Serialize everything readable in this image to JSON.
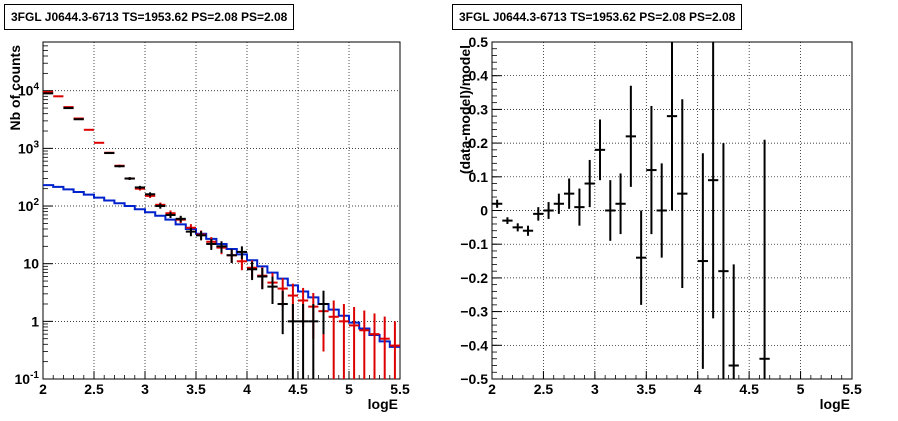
{
  "panels": [
    {
      "title": "3FGL J0644.3-6713 TS=1953.62 PS=2.08 PS=2.08"
    },
    {
      "title": "3FGL J0644.3-6713 TS=1953.62 PS=2.08 PS=2.08"
    }
  ],
  "colors": {
    "data": "#000000",
    "model_total": "#dd0000",
    "model_source": "#0022cc",
    "grid": "#000000"
  },
  "chart_data": [
    {
      "type": "line",
      "title": "3FGL J0644.3-6713 TS=1953.62 PS=2.08 PS=2.08",
      "xlabel": "logE",
      "ylabel": "Nb of counts",
      "xlim": [
        2,
        5.5
      ],
      "ylim": [
        0.1,
        70000
      ],
      "yscale": "log",
      "grid": true,
      "x_ticks": [
        "2",
        "2.5",
        "3",
        "3.5",
        "4",
        "4.5",
        "5",
        "5.5"
      ],
      "y_ticks": [
        "10^-1",
        "1",
        "10",
        "10^2",
        "10^3",
        "10^4"
      ],
      "x": [
        2.05,
        2.15,
        2.25,
        2.35,
        2.45,
        2.55,
        2.65,
        2.75,
        2.85,
        2.95,
        3.05,
        3.15,
        3.25,
        3.35,
        3.45,
        3.55,
        3.65,
        3.75,
        3.85,
        3.95,
        4.05,
        4.15,
        4.25,
        4.35,
        4.45,
        4.55,
        4.65,
        4.75,
        4.85,
        4.95,
        5.05,
        5.15,
        5.25,
        5.35,
        5.45
      ],
      "series": [
        {
          "kind": "data",
          "color": "#000000",
          "values": [
            9000,
            null,
            5000,
            3200,
            null,
            null,
            830,
            490,
            300,
            210,
            160,
            100,
            70,
            60,
            36,
            31,
            22,
            20,
            14,
            16,
            8,
            6,
            4,
            2,
            1,
            1,
            1,
            2,
            null,
            null,
            null,
            null,
            null,
            null,
            null
          ],
          "errors": [
            95,
            null,
            70,
            57,
            null,
            null,
            29,
            22,
            17,
            14,
            13,
            10,
            8,
            7.7,
            6,
            5.6,
            4.7,
            4.5,
            3.7,
            4,
            2.8,
            2.4,
            2,
            1.4,
            1,
            1,
            1,
            1.4,
            null,
            null,
            null,
            null,
            null,
            null,
            null
          ]
        },
        {
          "kind": "model_total",
          "color": "#dd0000",
          "values": [
            9500,
            8000,
            5200,
            3300,
            2100,
            1250,
            840,
            500,
            300,
            200,
            150,
            105,
            75,
            58,
            42,
            32,
            24,
            19,
            14,
            11,
            8.5,
            6.2,
            4.7,
            3.7,
            2.8,
            2.3,
            1.8,
            1.5,
            1.2,
            1.0,
            0.85,
            0.7,
            0.6,
            0.5,
            0.38
          ],
          "errors": [
            95,
            89,
            72,
            57,
            46,
            35,
            29,
            22,
            17,
            14,
            12,
            10,
            8.7,
            7.6,
            6.5,
            5.7,
            4.9,
            4.4,
            3.7,
            3.3,
            2.9,
            2.5,
            2.2,
            1.9,
            1.7,
            1.5,
            1.3,
            1.2,
            1.1,
            1.0,
            0.92,
            0.84,
            0.77,
            0.71,
            0.62
          ]
        },
        {
          "kind": "model_source",
          "color": "#0022cc",
          "values": [
            230,
            215,
            195,
            175,
            158,
            140,
            125,
            112,
            100,
            88,
            78,
            68,
            58,
            48,
            40,
            33,
            27,
            22,
            18,
            14.5,
            11.5,
            9,
            7,
            5.5,
            4.2,
            3.3,
            2.6,
            2.0,
            1.6,
            1.25,
            0.95,
            0.75,
            0.58,
            0.45,
            0.36
          ]
        }
      ]
    },
    {
      "type": "scatter",
      "title": "3FGL J0644.3-6713 TS=1953.62 PS=2.08 PS=2.08",
      "xlabel": "logE",
      "ylabel": "(data-model)/model",
      "xlim": [
        2,
        5.5
      ],
      "ylim": [
        -0.5,
        0.5
      ],
      "grid": true,
      "x_ticks": [
        "2",
        "2.5",
        "3",
        "3.5",
        "4",
        "4.5",
        "5",
        "5.5"
      ],
      "y_ticks": [
        "−0.5",
        "−0.4",
        "−0.3",
        "−0.2",
        "−0.1",
        "0",
        "0.1",
        "0.2",
        "0.3",
        "0.4",
        "0.5"
      ],
      "points": [
        {
          "x": 2.05,
          "y": 0.02,
          "err": 0.012
        },
        {
          "x": 2.15,
          "y": -0.03,
          "err": 0.01
        },
        {
          "x": 2.25,
          "y": -0.05,
          "err": 0.012
        },
        {
          "x": 2.35,
          "y": -0.06,
          "err": 0.015
        },
        {
          "x": 2.45,
          "y": -0.01,
          "err": 0.02
        },
        {
          "x": 2.55,
          "y": 0.0,
          "err": 0.025
        },
        {
          "x": 2.65,
          "y": 0.02,
          "err": 0.03
        },
        {
          "x": 2.75,
          "y": 0.05,
          "err": 0.045
        },
        {
          "x": 2.85,
          "y": 0.01,
          "err": 0.055
        },
        {
          "x": 2.95,
          "y": 0.08,
          "err": 0.07
        },
        {
          "x": 3.05,
          "y": 0.18,
          "err": 0.09
        },
        {
          "x": 3.15,
          "y": 0.0,
          "err": 0.09
        },
        {
          "x": 3.25,
          "y": 0.02,
          "err": 0.09
        },
        {
          "x": 3.35,
          "y": 0.22,
          "err": 0.15
        },
        {
          "x": 3.45,
          "y": -0.14,
          "err": 0.14
        },
        {
          "x": 3.55,
          "y": 0.12,
          "err": 0.19
        },
        {
          "x": 3.65,
          "y": 0.0,
          "err": 0.14
        },
        {
          "x": 3.75,
          "y": 0.28,
          "err": 0.28
        },
        {
          "x": 3.85,
          "y": 0.05,
          "err": 0.28
        },
        {
          "x": 4.05,
          "y": -0.15,
          "err": 0.32
        },
        {
          "x": 4.15,
          "y": 0.09,
          "err": 0.41
        },
        {
          "x": 4.25,
          "y": -0.18,
          "err": 0.38
        },
        {
          "x": 4.35,
          "y": -0.46,
          "err": 0.3
        },
        {
          "x": 4.65,
          "y": -0.44,
          "err": 0.65
        }
      ]
    }
  ]
}
